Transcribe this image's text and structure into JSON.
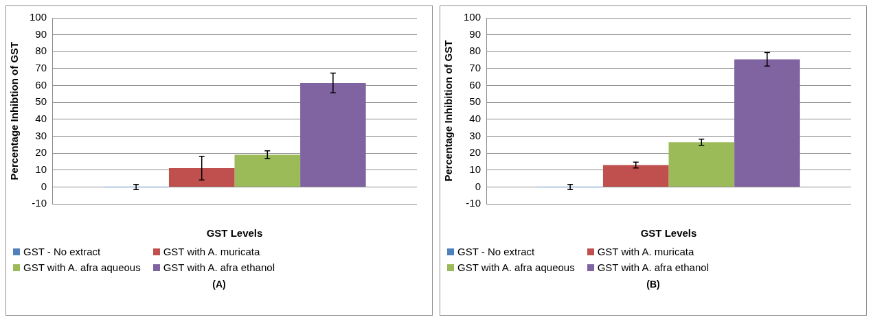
{
  "chart_data": [
    {
      "type": "bar",
      "categories": [
        null
      ],
      "xlabel": "GST Levels",
      "ylabel": "Percentage Inhibtion of GST",
      "ylim": [
        -10,
        100
      ],
      "yticks": [
        -10,
        0,
        10,
        20,
        30,
        40,
        50,
        60,
        70,
        80,
        90,
        100
      ],
      "grid": "y",
      "legend": "bottom",
      "annotations": [
        "(A)"
      ],
      "series": [
        {
          "name": "GST - No extract",
          "color": "#4f81bd",
          "values": [
            0
          ],
          "errors": [
            1.5
          ]
        },
        {
          "name": "GST with A. muricata",
          "color": "#c0504d",
          "values": [
            11.2
          ],
          "errors": [
            7
          ]
        },
        {
          "name": "GST with A. afra aqueous",
          "color": "#9bbb59",
          "values": [
            19.1
          ],
          "errors": [
            2.3
          ]
        },
        {
          "name": "GST with A. afra ethanol",
          "color": "#8064a2",
          "values": [
            61.5
          ],
          "errors": [
            5.8
          ]
        }
      ]
    },
    {
      "type": "bar",
      "categories": [
        null
      ],
      "xlabel": "GST Levels",
      "ylabel": "Percentage Inhibition of GST",
      "ylim": [
        -10,
        100
      ],
      "yticks": [
        -10,
        0,
        10,
        20,
        30,
        40,
        50,
        60,
        70,
        80,
        90,
        100
      ],
      "grid": "y",
      "legend": "bottom",
      "annotations": [
        "(B)"
      ],
      "series": [
        {
          "name": "GST - No extract",
          "color": "#4f81bd",
          "values": [
            0
          ],
          "errors": [
            1.5
          ]
        },
        {
          "name": "GST with A. muricata",
          "color": "#c0504d",
          "values": [
            13
          ],
          "errors": [
            1.7
          ]
        },
        {
          "name": "GST with A. afra aqueous",
          "color": "#9bbb59",
          "values": [
            26.5
          ],
          "errors": [
            1.8
          ]
        },
        {
          "name": "GST with A. afra ethanol",
          "color": "#8064a2",
          "values": [
            75.5
          ],
          "errors": [
            4
          ]
        }
      ]
    }
  ]
}
